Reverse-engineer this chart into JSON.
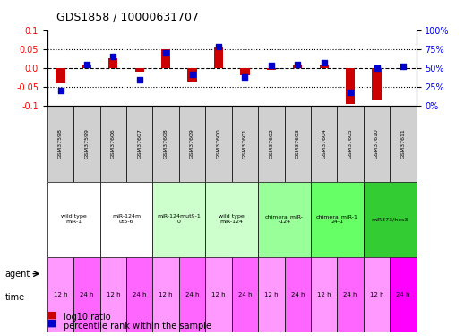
{
  "title": "GDS1858 / 10000631707",
  "samples": [
    "GSM37598",
    "GSM37599",
    "GSM37606",
    "GSM37607",
    "GSM37608",
    "GSM37609",
    "GSM37600",
    "GSM37601",
    "GSM37602",
    "GSM37603",
    "GSM37604",
    "GSM37605",
    "GSM37610",
    "GSM37611"
  ],
  "log10_ratio": [
    -0.04,
    0.01,
    0.025,
    -0.01,
    0.05,
    -0.035,
    0.055,
    -0.02,
    -0.005,
    0.01,
    0.01,
    -0.095,
    -0.085,
    0.0
  ],
  "percentile_rank": [
    20,
    55,
    65,
    35,
    70,
    42,
    78,
    38,
    53,
    55,
    57,
    18,
    50,
    52
  ],
  "agent_groups": [
    {
      "label": "wild type\nmiR-1",
      "cols": [
        0,
        1
      ],
      "color": "#ffffff"
    },
    {
      "label": "miR-124m\nut5-6",
      "cols": [
        2,
        3
      ],
      "color": "#ffffff"
    },
    {
      "label": "miR-124mut9-1\n0",
      "cols": [
        4,
        5
      ],
      "color": "#ccffcc"
    },
    {
      "label": "wild type\nmiR-124",
      "cols": [
        6,
        7
      ],
      "color": "#ccffcc"
    },
    {
      "label": "chimera_miR-\n-124",
      "cols": [
        8,
        9
      ],
      "color": "#99ff99"
    },
    {
      "label": "chimera_miR-1\n24-1",
      "cols": [
        10,
        11
      ],
      "color": "#66ff66"
    },
    {
      "label": "miR373/hes3",
      "cols": [
        12,
        13
      ],
      "color": "#33cc33"
    }
  ],
  "time_labels": [
    "12 h",
    "24 h",
    "12 h",
    "24 h",
    "12 h",
    "24 h",
    "12 h",
    "24 h",
    "12 h",
    "24 h",
    "12 h",
    "24 h",
    "12 h",
    "24 h"
  ],
  "time_colors": [
    "#ff99ff",
    "#ff66ff",
    "#ff99ff",
    "#ff66ff",
    "#ff99ff",
    "#ff66ff",
    "#ff99ff",
    "#ff66ff",
    "#ff99ff",
    "#ff66ff",
    "#ff99ff",
    "#ff66ff",
    "#ff99ff",
    "#ff00ff"
  ],
  "ylim_left": [
    -0.1,
    0.1
  ],
  "ylim_right": [
    0,
    100
  ],
  "yticks_left": [
    -0.1,
    -0.05,
    0.0,
    0.05,
    0.1
  ],
  "yticks_right": [
    0,
    25,
    50,
    75,
    100
  ],
  "ytick_labels_right": [
    "0%",
    "25%",
    "50%",
    "75%",
    "100%"
  ],
  "hlines": [
    0.05,
    0.0,
    -0.05
  ],
  "bar_color": "#cc0000",
  "dot_color": "#0000cc",
  "legend_items": [
    "log10 ratio",
    "percentile rank within the sample"
  ]
}
